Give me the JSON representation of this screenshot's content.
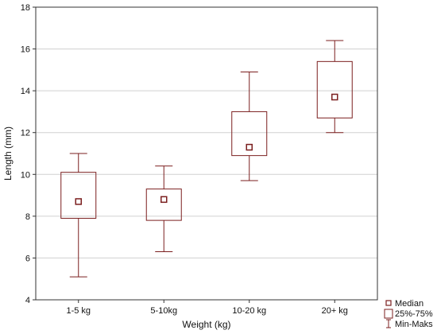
{
  "chart_data": {
    "type": "boxplot",
    "xlabel": "Weight (kg)",
    "ylabel": "Length (mm)",
    "ylim": [
      4,
      18
    ],
    "yticks": [
      4,
      6,
      8,
      10,
      12,
      14,
      16,
      18
    ],
    "grid": true,
    "legend_position": "bottom-right",
    "box_color": "#7b1f1f",
    "categories": [
      "1-5 kg",
      "5-10kg",
      "10-20 kg",
      "20+ kg"
    ],
    "boxes": [
      {
        "median": 8.7,
        "q1": 7.9,
        "q3": 10.1,
        "min": 5.1,
        "max": 11.0
      },
      {
        "median": 8.8,
        "q1": 7.8,
        "q3": 9.3,
        "min": 6.3,
        "max": 10.4
      },
      {
        "median": 11.3,
        "q1": 10.9,
        "q3": 13.0,
        "min": 9.7,
        "max": 14.9
      },
      {
        "median": 13.7,
        "q1": 12.7,
        "q3": 15.4,
        "min": 12.0,
        "max": 16.4
      }
    ],
    "legend": [
      {
        "symbol": "median",
        "label": "Median"
      },
      {
        "symbol": "box",
        "label": "25%-75%"
      },
      {
        "symbol": "whisker",
        "label": "Min-Maks"
      }
    ]
  }
}
